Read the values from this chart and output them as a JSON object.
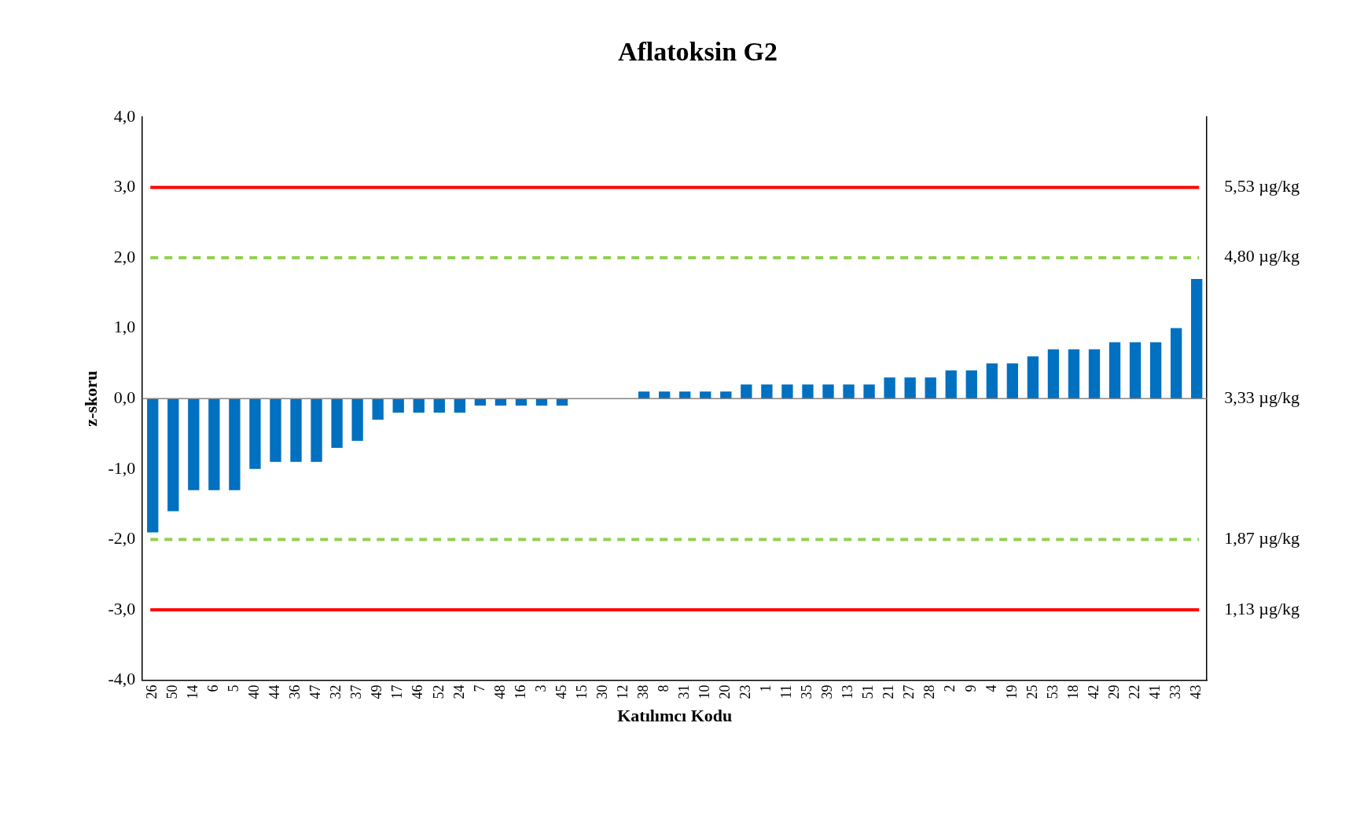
{
  "chart_data": {
    "type": "bar",
    "title": "Aflatoksin G2",
    "xlabel": "Katılımcı Kodu",
    "ylabel": "z-skoru",
    "categories": [
      "26",
      "50",
      "14",
      "6",
      "5",
      "40",
      "44",
      "36",
      "47",
      "32",
      "37",
      "49",
      "17",
      "46",
      "52",
      "24",
      "7",
      "48",
      "16",
      "3",
      "45",
      "15",
      "30",
      "12",
      "38",
      "8",
      "31",
      "10",
      "20",
      "23",
      "1",
      "11",
      "35",
      "39",
      "13",
      "51",
      "21",
      "27",
      "28",
      "2",
      "9",
      "4",
      "19",
      "25",
      "53",
      "18",
      "42",
      "29",
      "22",
      "41",
      "33",
      "43"
    ],
    "values": [
      -1.9,
      -1.6,
      -1.3,
      -1.3,
      -1.3,
      -1.0,
      -0.9,
      -0.9,
      -0.9,
      -0.7,
      -0.6,
      -0.3,
      -0.2,
      -0.2,
      -0.2,
      -0.2,
      -0.1,
      -0.1,
      -0.1,
      -0.1,
      -0.1,
      0,
      0,
      0,
      0.1,
      0.1,
      0.1,
      0.1,
      0.1,
      0.2,
      0.2,
      0.2,
      0.2,
      0.2,
      0.2,
      0.2,
      0.3,
      0.3,
      0.3,
      0.4,
      0.4,
      0.5,
      0.5,
      0.6,
      0.7,
      0.7,
      0.7,
      0.8,
      0.8,
      0.8,
      1.0,
      1.7
    ],
    "color": "#0070c0",
    "ylim": [
      -4,
      4
    ],
    "yticks": [
      {
        "value": -4,
        "label": "-4,0"
      },
      {
        "value": -3,
        "label": "-3,0"
      },
      {
        "value": -2,
        "label": "-2,0"
      },
      {
        "value": -1,
        "label": "-1,0"
      },
      {
        "value": 0,
        "label": "0,0"
      },
      {
        "value": 1,
        "label": "1,0"
      },
      {
        "value": 2,
        "label": "2,0"
      },
      {
        "value": 3,
        "label": "3,0"
      },
      {
        "value": 4,
        "label": "4,0"
      }
    ],
    "y2lim": [
      0.4,
      6.26
    ],
    "y2ticks": [
      {
        "value": 1.13,
        "label": "1,13 µg/kg"
      },
      {
        "value": 1.87,
        "label": "1,87 µg/kg"
      },
      {
        "value": 3.33,
        "label": "3,33 µg/kg"
      },
      {
        "value": 4.8,
        "label": "4,80 µg/kg"
      },
      {
        "value": 5.53,
        "label": "5,53 µg/kg"
      }
    ],
    "ref_lines": [
      {
        "axis": "y",
        "value": 3,
        "color": "#ff0000",
        "line_style": "solid"
      },
      {
        "axis": "y",
        "value": 2,
        "color": "#92d050",
        "line_style": "dashed"
      },
      {
        "axis": "y",
        "value": -2,
        "color": "#92d050",
        "line_style": "dashed"
      },
      {
        "axis": "y",
        "value": -3,
        "color": "#ff0000",
        "line_style": "solid"
      }
    ],
    "grid": false,
    "legend": false
  }
}
